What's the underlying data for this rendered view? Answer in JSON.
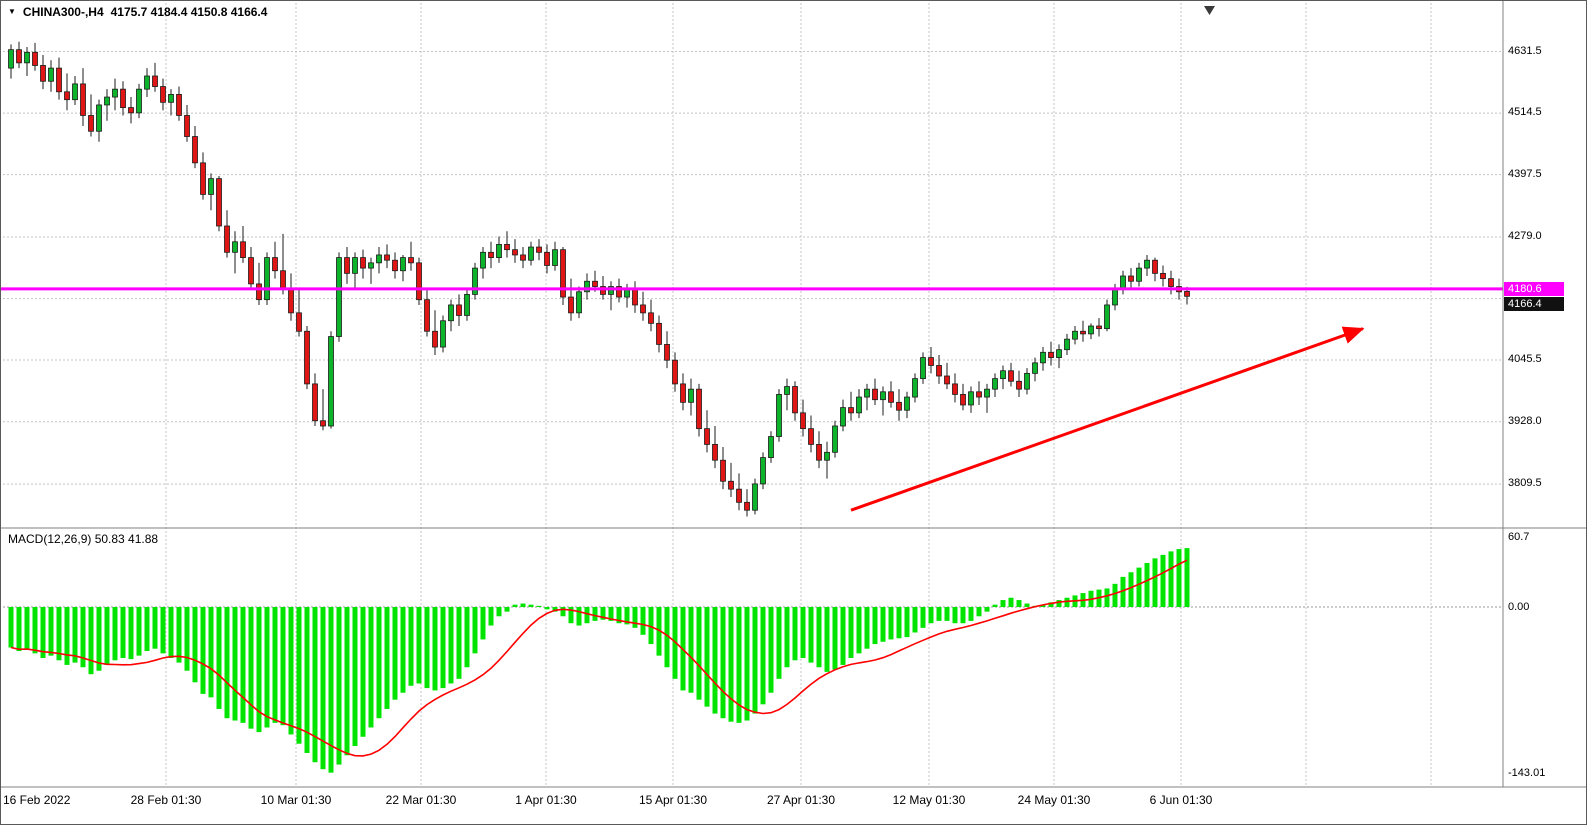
{
  "window": {
    "symbol_marker": "▼",
    "title": "CHINA300-,H4",
    "ohlc_text": "4175.7 4184.4 4150.8 4166.4"
  },
  "price_axis": {
    "labels": [
      "4631.5",
      "4514.5",
      "4397.5",
      "4279.0",
      "4045.5",
      "3928.0",
      "3809.5"
    ],
    "values": [
      4631.5,
      4514.5,
      4397.5,
      4279.0,
      4045.5,
      3928.0,
      3809.5
    ],
    "hline_badge": "4180.6",
    "price_badge": "4166.4"
  },
  "time_axis": {
    "labels": [
      "16 Feb 2022",
      "28 Feb 01:30",
      "10 Mar 01:30",
      "22 Mar 01:30",
      "1 Apr 01:30",
      "15 Apr 01:30",
      "27 Apr 01:30",
      "12 May 01:30",
      "24 May 01:30",
      "6 Jun 01:30"
    ]
  },
  "macd_panel": {
    "label": "MACD(12,26,9) 50.83 41.88",
    "axis_labels": [
      "60.7",
      "0.00",
      "-143.01"
    ],
    "axis_values": [
      60.7,
      0,
      -143.01
    ]
  },
  "colors": {
    "up": "#0bb42a",
    "down": "#e01616",
    "candle_border": "#1c1c1c",
    "grid": "#c4c4c4",
    "magenta_line": "#ff00ff",
    "macd_bar": "#00e400",
    "macd_signal": "#ff0000",
    "arrow": "#ff0000",
    "axis_text": "#000000",
    "badge_magenta_bg": "#ff00ff",
    "badge_dark_bg": "#111111",
    "frame": "#808080"
  },
  "chart_data": {
    "type": "candlestick",
    "symbol": "CHINA300-",
    "timeframe": "H4",
    "title": "CHINA300-,H4 4175.7 4184.4 4150.8 4166.4",
    "last_ohlc": {
      "open": 4175.7,
      "high": 4184.4,
      "low": 4150.8,
      "close": 4166.4
    },
    "horizontal_line_price": 4180.6,
    "y_range": [
      3726,
      4680
    ],
    "price_gridlines": [
      4631.5,
      4514.5,
      4397.5,
      4279.0,
      4162.0,
      4045.5,
      3928.0,
      3809.5
    ],
    "x_ticks": [
      "16 Feb 2022",
      "28 Feb 01:30",
      "10 Mar 01:30",
      "22 Mar 01:30",
      "1 Apr 01:30",
      "15 Apr 01:30",
      "27 Apr 01:30",
      "12 May 01:30",
      "24 May 01:30",
      "6 Jun 01:30"
    ],
    "grid": true,
    "candles": [
      [
        4600,
        4645,
        4580,
        4635
      ],
      [
        4635,
        4650,
        4600,
        4610
      ],
      [
        4610,
        4640,
        4585,
        4630
      ],
      [
        4630,
        4648,
        4595,
        4605
      ],
      [
        4605,
        4625,
        4560,
        4575
      ],
      [
        4575,
        4615,
        4555,
        4600
      ],
      [
        4600,
        4620,
        4540,
        4555
      ],
      [
        4555,
        4590,
        4520,
        4540
      ],
      [
        4540,
        4585,
        4530,
        4570
      ],
      [
        4570,
        4600,
        4490,
        4510
      ],
      [
        4510,
        4550,
        4470,
        4480
      ],
      [
        4480,
        4540,
        4460,
        4530
      ],
      [
        4530,
        4560,
        4500,
        4545
      ],
      [
        4545,
        4580,
        4520,
        4560
      ],
      [
        4560,
        4575,
        4510,
        4525
      ],
      [
        4525,
        4545,
        4495,
        4515
      ],
      [
        4515,
        4570,
        4505,
        4560
      ],
      [
        4560,
        4600,
        4545,
        4585
      ],
      [
        4585,
        4610,
        4555,
        4565
      ],
      [
        4565,
        4580,
        4520,
        4535
      ],
      [
        4535,
        4560,
        4510,
        4550
      ],
      [
        4550,
        4565,
        4500,
        4510
      ],
      [
        4510,
        4530,
        4460,
        4470
      ],
      [
        4470,
        4490,
        4410,
        4420
      ],
      [
        4420,
        4440,
        4350,
        4360
      ],
      [
        4360,
        4400,
        4330,
        4390
      ],
      [
        4390,
        4395,
        4290,
        4300
      ],
      [
        4300,
        4330,
        4240,
        4250
      ],
      [
        4250,
        4290,
        4210,
        4270
      ],
      [
        4270,
        4300,
        4230,
        4240
      ],
      [
        4240,
        4260,
        4180,
        4190
      ],
      [
        4190,
        4230,
        4150,
        4160
      ],
      [
        4160,
        4250,
        4150,
        4240
      ],
      [
        4240,
        4270,
        4200,
        4215
      ],
      [
        4215,
        4285,
        4170,
        4180
      ],
      [
        4180,
        4210,
        4120,
        4135
      ],
      [
        4135,
        4180,
        4090,
        4100
      ],
      [
        4100,
        4110,
        3990,
        4000
      ],
      [
        4000,
        4020,
        3920,
        3930
      ],
      [
        3930,
        3990,
        3912,
        3920
      ],
      [
        3920,
        4100,
        3915,
        4090
      ],
      [
        4090,
        4250,
        4080,
        4240
      ],
      [
        4240,
        4260,
        4190,
        4210
      ],
      [
        4210,
        4250,
        4180,
        4240
      ],
      [
        4240,
        4255,
        4200,
        4220
      ],
      [
        4220,
        4240,
        4190,
        4230
      ],
      [
        4230,
        4260,
        4210,
        4245
      ],
      [
        4245,
        4265,
        4220,
        4235
      ],
      [
        4235,
        4250,
        4200,
        4215
      ],
      [
        4215,
        4245,
        4195,
        4240
      ],
      [
        4240,
        4270,
        4215,
        4230
      ],
      [
        4230,
        4240,
        4150,
        4160
      ],
      [
        4160,
        4180,
        4090,
        4100
      ],
      [
        4100,
        4140,
        4055,
        4070
      ],
      [
        4070,
        4130,
        4060,
        4120
      ],
      [
        4120,
        4160,
        4100,
        4150
      ],
      [
        4150,
        4170,
        4110,
        4130
      ],
      [
        4130,
        4180,
        4120,
        4170
      ],
      [
        4170,
        4230,
        4160,
        4220
      ],
      [
        4220,
        4260,
        4200,
        4250
      ],
      [
        4250,
        4270,
        4220,
        4240
      ],
      [
        4240,
        4280,
        4230,
        4265
      ],
      [
        4265,
        4290,
        4240,
        4255
      ],
      [
        4255,
        4275,
        4230,
        4245
      ],
      [
        4245,
        4260,
        4220,
        4235
      ],
      [
        4235,
        4270,
        4225,
        4260
      ],
      [
        4260,
        4275,
        4235,
        4250
      ],
      [
        4250,
        4265,
        4210,
        4225
      ],
      [
        4225,
        4270,
        4215,
        4255
      ],
      [
        4255,
        4260,
        4150,
        4165
      ],
      [
        4165,
        4200,
        4120,
        4135
      ],
      [
        4135,
        4185,
        4125,
        4175
      ],
      [
        4175,
        4210,
        4160,
        4195
      ],
      [
        4195,
        4215,
        4175,
        4185
      ],
      [
        4185,
        4205,
        4160,
        4170
      ],
      [
        4170,
        4195,
        4140,
        4185
      ],
      [
        4185,
        4200,
        4155,
        4165
      ],
      [
        4165,
        4190,
        4145,
        4180
      ],
      [
        4180,
        4195,
        4135,
        4150
      ],
      [
        4150,
        4175,
        4120,
        4135
      ],
      [
        4135,
        4160,
        4100,
        4115
      ],
      [
        4115,
        4130,
        4060,
        4075
      ],
      [
        4075,
        4100,
        4030,
        4045
      ],
      [
        4045,
        4060,
        3985,
        4000
      ],
      [
        4000,
        4020,
        3950,
        3965
      ],
      [
        3965,
        4010,
        3940,
        3990
      ],
      [
        3990,
        4000,
        3900,
        3915
      ],
      [
        3915,
        3950,
        3870,
        3885
      ],
      [
        3885,
        3920,
        3840,
        3855
      ],
      [
        3855,
        3880,
        3800,
        3815
      ],
      [
        3815,
        3850,
        3785,
        3800
      ],
      [
        3800,
        3830,
        3760,
        3775
      ],
      [
        3775,
        3800,
        3748,
        3760
      ],
      [
        3760,
        3820,
        3752,
        3810
      ],
      [
        3810,
        3870,
        3800,
        3860
      ],
      [
        3860,
        3910,
        3850,
        3900
      ],
      [
        3900,
        3990,
        3890,
        3980
      ],
      [
        3980,
        4010,
        3950,
        3995
      ],
      [
        3995,
        4005,
        3930,
        3945
      ],
      [
        3945,
        3970,
        3900,
        3915
      ],
      [
        3915,
        3940,
        3870,
        3885
      ],
      [
        3885,
        3910,
        3840,
        3855
      ],
      [
        3855,
        3890,
        3820,
        3870
      ],
      [
        3870,
        3930,
        3860,
        3920
      ],
      [
        3920,
        3970,
        3910,
        3955
      ],
      [
        3955,
        3985,
        3930,
        3945
      ],
      [
        3945,
        3990,
        3935,
        3975
      ],
      [
        3975,
        4000,
        3950,
        3990
      ],
      [
        3990,
        4010,
        3960,
        3970
      ],
      [
        3970,
        3995,
        3940,
        3985
      ],
      [
        3985,
        4005,
        3955,
        3965
      ],
      [
        3965,
        3990,
        3930,
        3950
      ],
      [
        3950,
        3985,
        3935,
        3975
      ],
      [
        3975,
        4020,
        3965,
        4010
      ],
      [
        4010,
        4060,
        4000,
        4050
      ],
      [
        4050,
        4070,
        4020,
        4035
      ],
      [
        4035,
        4055,
        4000,
        4015
      ],
      [
        4015,
        4040,
        3990,
        4000
      ],
      [
        4000,
        4020,
        3965,
        3980
      ],
      [
        3980,
        4000,
        3950,
        3960
      ],
      [
        3960,
        3995,
        3945,
        3985
      ],
      [
        3985,
        4005,
        3960,
        3975
      ],
      [
        3975,
        4000,
        3945,
        3990
      ],
      [
        3990,
        4020,
        3975,
        4010
      ],
      [
        4010,
        4035,
        3990,
        4025
      ],
      [
        4025,
        4040,
        3995,
        4005
      ],
      [
        4005,
        4025,
        3975,
        3990
      ],
      [
        3990,
        4030,
        3980,
        4020
      ],
      [
        4020,
        4050,
        4005,
        4040
      ],
      [
        4040,
        4070,
        4025,
        4060
      ],
      [
        4060,
        4080,
        4035,
        4050
      ],
      [
        4050,
        4075,
        4030,
        4065
      ],
      [
        4065,
        4095,
        4055,
        4085
      ],
      [
        4085,
        4110,
        4075,
        4100
      ],
      [
        4100,
        4120,
        4080,
        4095
      ],
      [
        4095,
        4115,
        4085,
        4110
      ],
      [
        4110,
        4125,
        4090,
        4105
      ],
      [
        4105,
        4160,
        4100,
        4150
      ],
      [
        4150,
        4190,
        4140,
        4180
      ],
      [
        4180,
        4215,
        4170,
        4205
      ],
      [
        4205,
        4220,
        4180,
        4195
      ],
      [
        4195,
        4230,
        4185,
        4220
      ],
      [
        4220,
        4245,
        4205,
        4235
      ],
      [
        4235,
        4240,
        4195,
        4210
      ],
      [
        4210,
        4225,
        4185,
        4200
      ],
      [
        4200,
        4215,
        4170,
        4185
      ],
      [
        4185,
        4200,
        4160,
        4175
      ],
      [
        4175.7,
        4184.4,
        4150.8,
        4166.4
      ]
    ],
    "indicator": {
      "type": "MACD",
      "fast": 12,
      "slow": 26,
      "signal": 9,
      "macd_value": 50.83,
      "signal_value": 41.88,
      "axis_range": [
        -143.01,
        60.7
      ],
      "histogram": [
        -35,
        -38,
        -36,
        -40,
        -44,
        -42,
        -46,
        -50,
        -48,
        -52,
        -58,
        -55,
        -50,
        -46,
        -44,
        -45,
        -42,
        -38,
        -36,
        -40,
        -44,
        -48,
        -55,
        -65,
        -75,
        -78,
        -88,
        -96,
        -98,
        -100,
        -105,
        -108,
        -104,
        -100,
        -102,
        -110,
        -118,
        -126,
        -134,
        -140,
        -143,
        -136,
        -128,
        -120,
        -112,
        -104,
        -96,
        -88,
        -80,
        -74,
        -68,
        -66,
        -70,
        -72,
        -70,
        -66,
        -62,
        -52,
        -40,
        -28,
        -16,
        -8,
        -4,
        2,
        3,
        2,
        1,
        -2,
        -4,
        -8,
        -14,
        -16,
        -14,
        -12,
        -11,
        -12,
        -14,
        -15,
        -18,
        -24,
        -32,
        -42,
        -52,
        -62,
        -72,
        -74,
        -80,
        -86,
        -92,
        -96,
        -99,
        -100,
        -98,
        -92,
        -84,
        -74,
        -62,
        -52,
        -46,
        -44,
        -48,
        -52,
        -56,
        -54,
        -50,
        -44,
        -40,
        -36,
        -32,
        -30,
        -28,
        -27,
        -26,
        -22,
        -18,
        -14,
        -12,
        -12,
        -14,
        -14,
        -12,
        -8,
        -4,
        2,
        6,
        8,
        6,
        3,
        1,
        2,
        4,
        6,
        8,
        10,
        12,
        14,
        15,
        16,
        20,
        26,
        30,
        34,
        38,
        42,
        45,
        48,
        50,
        50.83
      ]
    },
    "trend_arrow": {
      "start": {
        "index": 105,
        "price": 3760
      },
      "end": {
        "index": 169,
        "price": 4105
      }
    }
  }
}
